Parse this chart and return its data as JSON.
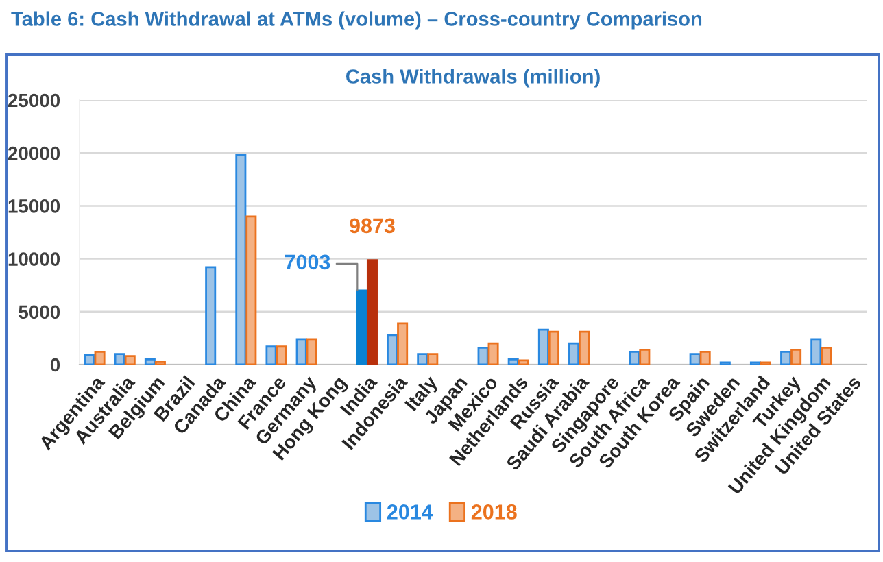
{
  "chart_data": {
    "type": "bar",
    "title": "Table 6: Cash Withdrawal at ATMs (volume) – Cross-country Comparison",
    "subtitle": "Cash Withdrawals (million)",
    "categories": [
      "Argentina",
      "Australia",
      "Belgium",
      "Brazil",
      "Canada",
      "China",
      "France",
      "Germany",
      "Hong Kong",
      "India",
      "Indonesia",
      "Italy",
      "Japan",
      "Mexico",
      "Netherlands",
      "Russia",
      "Saudi Arabia",
      "Singapore",
      "South Africa",
      "South Korea",
      "Spain",
      "Sweden",
      "Switzerland",
      "Turkey",
      "United Kingdom",
      "United States"
    ],
    "series": [
      {
        "name": "2014",
        "color": "#9dc3e6",
        "colors": [
          "#9dc3e6",
          "#9dc3e6",
          "#9dc3e6",
          "#9dc3e6",
          "#9dc3e6",
          "#9dc3e6",
          "#9dc3e6",
          "#9dc3e6",
          "#9dc3e6",
          "#0a82d2",
          "#9dc3e6",
          "#9dc3e6",
          "#9dc3e6",
          "#9dc3e6",
          "#9dc3e6",
          "#9dc3e6",
          "#9dc3e6",
          "#9dc3e6",
          "#9dc3e6",
          "#9dc3e6",
          "#9dc3e6",
          "#9dc3e6",
          "#9dc3e6",
          "#9dc3e6",
          "#9dc3e6",
          "#9dc3e6"
        ],
        "values": [
          900,
          1000,
          500,
          null,
          9200,
          19800,
          1700,
          2400,
          null,
          7003,
          2800,
          1000,
          null,
          1600,
          500,
          3300,
          2000,
          null,
          1200,
          null,
          1000,
          200,
          200,
          1200,
          2400,
          null
        ],
        "value_labels": [
          null,
          null,
          null,
          null,
          null,
          null,
          null,
          null,
          null,
          "7003",
          null,
          null,
          null,
          null,
          null,
          null,
          null,
          null,
          null,
          null,
          null,
          null,
          null,
          null,
          null,
          null
        ]
      },
      {
        "name": "2018",
        "color": "#f4b183",
        "colors": [
          "#f4b183",
          "#f4b183",
          "#f4b183",
          "#f4b183",
          "#f4b183",
          "#f4b183",
          "#f4b183",
          "#f4b183",
          "#f4b183",
          "#b8300c",
          "#f4b183",
          "#f4b183",
          "#f4b183",
          "#f4b183",
          "#f4b183",
          "#f4b183",
          "#f4b183",
          "#f4b183",
          "#f4b183",
          "#f4b183",
          "#f4b183",
          "#f4b183",
          "#f4b183",
          "#f4b183",
          "#f4b183",
          "#f4b183"
        ],
        "values": [
          1200,
          800,
          300,
          null,
          null,
          14000,
          1700,
          2400,
          null,
          9873,
          3900,
          1000,
          null,
          2000,
          400,
          3100,
          3100,
          null,
          1400,
          null,
          1200,
          null,
          200,
          1400,
          1600,
          null
        ],
        "value_labels": [
          null,
          null,
          null,
          null,
          null,
          null,
          null,
          null,
          null,
          "9873",
          null,
          null,
          null,
          null,
          null,
          null,
          null,
          null,
          null,
          null,
          null,
          null,
          null,
          null,
          null,
          null
        ]
      }
    ],
    "ylim": [
      0,
      25000
    ],
    "yticks": [
      0,
      5000,
      10000,
      15000,
      20000,
      25000
    ],
    "grid": "y",
    "legend": "bottom"
  }
}
